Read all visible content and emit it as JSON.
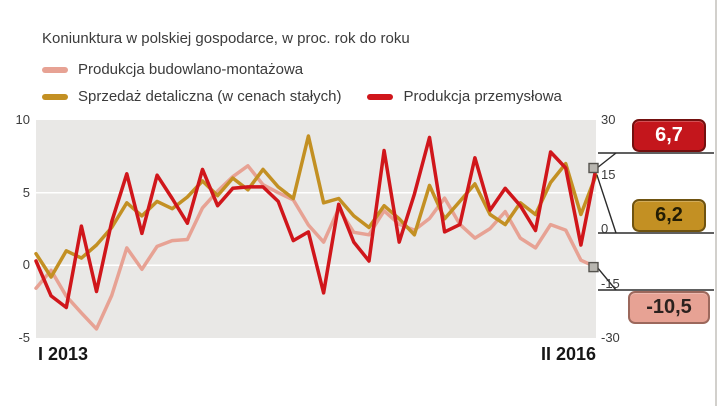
{
  "title": "Koniunktura w polskiej gospodarce, w proc. rok do roku",
  "legend": [
    {
      "label": "Produkcja budowlano-montażowa",
      "color": "#e7a294"
    },
    {
      "label": "Sprzedaż detaliczna (w cenach stałych)",
      "color": "#c39023"
    },
    {
      "label": "Produkcja przemysłowa",
      "color": "#d0161b"
    }
  ],
  "badges": [
    {
      "value": "6,7",
      "series": "Produkcja przemysłowa",
      "bg": "#c4161c",
      "border": "#74100f",
      "text": "#ffffff"
    },
    {
      "value": "6,2",
      "series": "Sprzedaż detaliczna (w cenach stałych)",
      "bg": "#c39023",
      "border": "#6f5310",
      "text": "#231d04"
    },
    {
      "value": "-10,5",
      "series": "Produkcja budowlano-montażowa",
      "bg": "#e7a294",
      "border": "#9c685c",
      "text": "#2b211e"
    }
  ],
  "chart_data": {
    "type": "line",
    "title": "Koniunktura w polskiej gospodarce, w proc. rok do roku",
    "x_start_label": "I 2013",
    "x_end_label": "II 2016",
    "x_period": "monthly, Jan 2013 - Feb 2016",
    "plot_bg": "#e9e8e6",
    "gridline_color": "#ffffff",
    "gridlines_at_left": [
      5,
      0
    ],
    "left_axis": {
      "ticks": [
        10,
        5,
        0,
        -5
      ],
      "range": [
        -5,
        10
      ]
    },
    "right_axis": {
      "ticks": [
        30,
        15,
        0,
        -15,
        -30
      ],
      "range": [
        -30,
        30
      ]
    },
    "series": [
      {
        "name": "Produkcja budowlano-montażowa",
        "axis": "right",
        "color": "#e7a294",
        "final_value_label": "-10,5",
        "values": [
          -16.3,
          -11.4,
          -18.5,
          -23.1,
          -27.5,
          -18.3,
          -5.2,
          -11.1,
          -4.8,
          -3.2,
          -2.9,
          5.8,
          10.4,
          14.4,
          17.4,
          12.2,
          10.0,
          8.0,
          1.1,
          -3.6,
          5.6,
          -0.9,
          -1.6,
          5.0,
          1.3,
          -0.3,
          2.9,
          8.5,
          1.3,
          -2.5,
          0.1,
          4.8,
          -2.5,
          -5.2,
          1.2,
          -0.3,
          -8.6,
          -10.5
        ]
      },
      {
        "name": "Sprzedaż detaliczna (w cenach stałych)",
        "axis": "left",
        "color": "#c39023",
        "final_value_label": "6,2",
        "values": [
          0.8,
          -0.8,
          1.0,
          0.5,
          1.4,
          2.6,
          4.3,
          3.4,
          4.4,
          3.9,
          4.7,
          5.8,
          4.8,
          6.0,
          5.2,
          6.6,
          5.4,
          4.6,
          8.9,
          4.3,
          4.6,
          3.4,
          2.6,
          4.1,
          3.2,
          2.1,
          5.5,
          3.2,
          4.4,
          5.6,
          3.5,
          2.8,
          4.3,
          3.5,
          5.7,
          7.0,
          3.5,
          6.2
        ]
      },
      {
        "name": "Produkcja przemysłowa",
        "axis": "left",
        "color": "#d0161b",
        "final_value_label": "6,7",
        "values": [
          0.3,
          -2.1,
          -2.9,
          2.7,
          -1.8,
          3.0,
          6.3,
          2.2,
          6.2,
          4.6,
          2.9,
          6.6,
          4.1,
          5.3,
          5.4,
          5.4,
          4.4,
          1.7,
          2.3,
          -1.9,
          4.2,
          1.6,
          0.3,
          7.9,
          1.6,
          4.9,
          8.8,
          2.3,
          2.8,
          7.4,
          3.8,
          5.3,
          4.1,
          2.4,
          7.8,
          6.7,
          1.4,
          6.7
        ]
      }
    ]
  }
}
